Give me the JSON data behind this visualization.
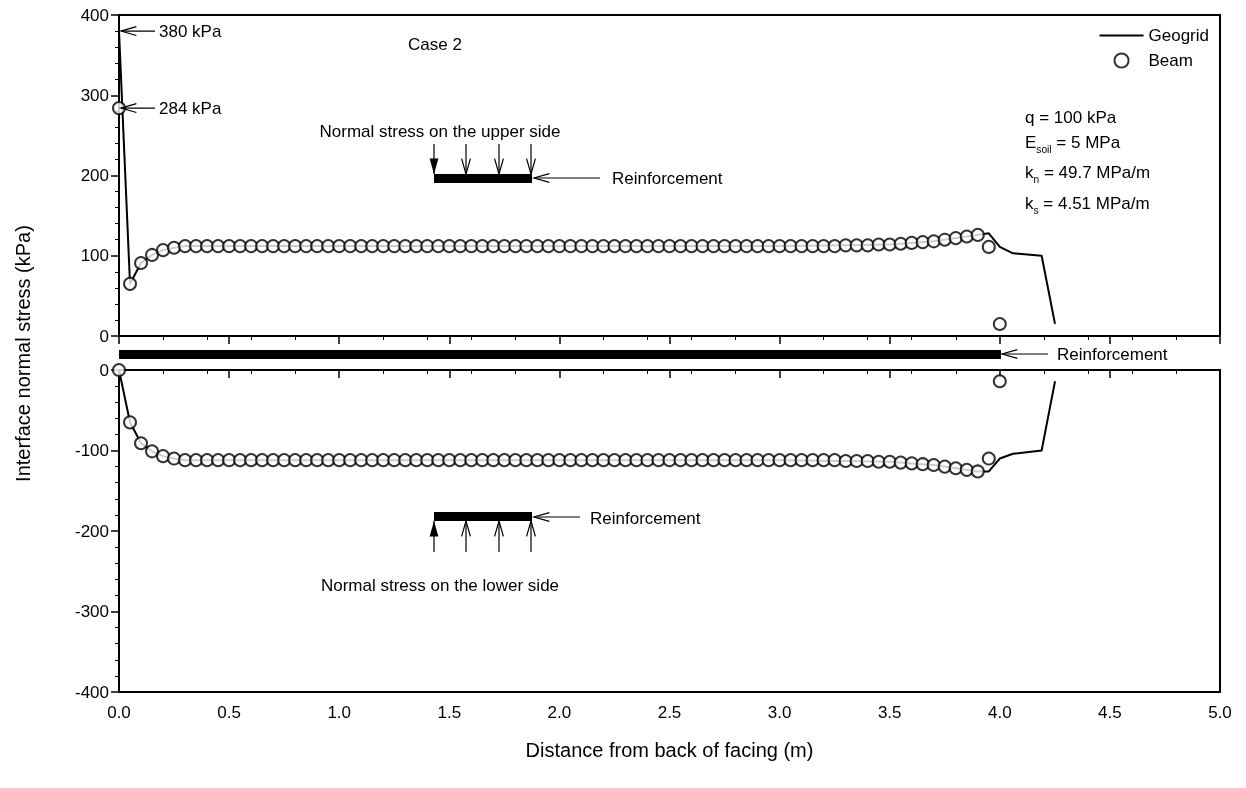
{
  "chart_data": [
    {
      "type": "line",
      "ylabel": "Interface normal stress (kPa)",
      "legend": "top right",
      "tick_labels": "y",
      "xlim": [
        0,
        5
      ],
      "xticks": [
        0,
        0.5,
        1,
        1.5,
        2,
        2.5,
        3,
        3.5,
        4,
        4.5,
        5
      ],
      "ylim": [
        0,
        400
      ],
      "yticks": [
        0,
        100,
        200,
        300,
        400
      ],
      "series": [
        {
          "name": "Geogrid",
          "marker": "none",
          "color": "#000000",
          "x": [
            0,
            0.05,
            0.1,
            0.15,
            0.2,
            0.25,
            0.3,
            1,
            2,
            3,
            3.3,
            3.5,
            3.6,
            3.7,
            3.8,
            3.9,
            3.95,
            4,
            4.06,
            4.19,
            4.25
          ],
          "values": [
            380,
            65,
            91,
            101,
            107,
            110,
            112,
            112,
            112,
            112,
            113,
            114,
            116,
            118,
            122,
            126,
            128,
            111,
            103,
            100,
            16
          ]
        },
        {
          "name": "Beam",
          "type": "scatter",
          "marker": "circle",
          "color": "#000000",
          "x": [
            0,
            0.05,
            0.1,
            0.15,
            0.2,
            0.25,
            0.3,
            0.35,
            0.4,
            0.45,
            0.5,
            0.55,
            0.6,
            0.65,
            0.7,
            0.75,
            0.8,
            0.85,
            0.9,
            0.95,
            1,
            1.05,
            1.1,
            1.15,
            1.2,
            1.25,
            1.3,
            1.35,
            1.4,
            1.45,
            1.5,
            1.55,
            1.6,
            1.65,
            1.7,
            1.75,
            1.8,
            1.85,
            1.9,
            1.95,
            2,
            2.05,
            2.1,
            2.15,
            2.2,
            2.25,
            2.3,
            2.35,
            2.4,
            2.45,
            2.5,
            2.55,
            2.6,
            2.65,
            2.7,
            2.75,
            2.8,
            2.85,
            2.9,
            2.95,
            3,
            3.05,
            3.1,
            3.15,
            3.2,
            3.25,
            3.3,
            3.35,
            3.4,
            3.45,
            3.5,
            3.55,
            3.6,
            3.65,
            3.7,
            3.75,
            3.8,
            3.85,
            3.9,
            3.95,
            4
          ],
          "values": [
            284,
            65,
            91,
            101,
            107,
            110,
            112,
            112,
            112,
            112,
            112,
            112,
            112,
            112,
            112,
            112,
            112,
            112,
            112,
            112,
            112,
            112,
            112,
            112,
            112,
            112,
            112,
            112,
            112,
            112,
            112,
            112,
            112,
            112,
            112,
            112,
            112,
            112,
            112,
            112,
            112,
            112,
            112,
            112,
            112,
            112,
            112,
            112,
            112,
            112,
            112,
            112,
            112,
            112,
            112,
            112,
            112,
            112,
            112,
            112,
            112,
            112,
            112,
            112,
            112,
            112,
            113,
            113,
            113,
            114,
            114,
            115,
            116,
            117,
            118,
            120,
            122,
            124,
            126,
            111,
            15
          ]
        }
      ],
      "annotations": [
        {
          "text": "380 kPa",
          "x": 0,
          "y": 380
        },
        {
          "text": "284 kPa",
          "x": 0,
          "y": 284
        },
        "Case 2",
        "q = 100 kPa",
        "E$_{soil}$ = 5 MPa",
        "k$_{n}$ = 49.7 MPa/m",
        "k$_{s}$ = 4.51 MPa/m",
        "Normal stress on the upper side",
        "Reinforcement",
        "Reinforcement"
      ]
    },
    {
      "type": "line",
      "xlabel": "Distance from back of facing (m)",
      "xlim": [
        0,
        5
      ],
      "xticks": [
        {
          "value": 0,
          "label": "0.0"
        },
        {
          "value": 0.5,
          "label": "0.5"
        },
        {
          "value": 1,
          "label": "1.0"
        },
        {
          "value": 1.5,
          "label": "1.5"
        },
        {
          "value": 2,
          "label": "2.0"
        },
        {
          "value": 2.5,
          "label": "2.5"
        },
        {
          "value": 3,
          "label": "3.0"
        },
        {
          "value": 3.5,
          "label": "3.5"
        },
        {
          "value": 4,
          "label": "4.0"
        },
        {
          "value": 4.5,
          "label": "4.5"
        },
        {
          "value": 5,
          "label": "5.0"
        }
      ],
      "ylim": [
        -400,
        0
      ],
      "yticks": [
        -400,
        -300,
        -200,
        -100,
        0
      ],
      "series": [
        {
          "marker": "none",
          "color": "#000000",
          "x": [
            0,
            0.05,
            0.1,
            0.15,
            0.2,
            0.25,
            0.3,
            1,
            2,
            3,
            3.3,
            3.5,
            3.6,
            3.7,
            3.8,
            3.9,
            3.95,
            4,
            4.06,
            4.19,
            4.25
          ],
          "values": [
            0,
            -65,
            -91,
            -101,
            -107,
            -110,
            -112,
            -112,
            -112,
            -112,
            -113,
            -114,
            -116,
            -118,
            -122,
            -126,
            -126,
            -110,
            -104,
            -100,
            -15
          ]
        },
        {
          "type": "scatter",
          "marker": "circle",
          "color": "#000000",
          "x": [
            0,
            0.05,
            0.1,
            0.15,
            0.2,
            0.25,
            0.3,
            0.35,
            0.4,
            0.45,
            0.5,
            0.55,
            0.6,
            0.65,
            0.7,
            0.75,
            0.8,
            0.85,
            0.9,
            0.95,
            1,
            1.05,
            1.1,
            1.15,
            1.2,
            1.25,
            1.3,
            1.35,
            1.4,
            1.45,
            1.5,
            1.55,
            1.6,
            1.65,
            1.7,
            1.75,
            1.8,
            1.85,
            1.9,
            1.95,
            2,
            2.05,
            2.1,
            2.15,
            2.2,
            2.25,
            2.3,
            2.35,
            2.4,
            2.45,
            2.5,
            2.55,
            2.6,
            2.65,
            2.7,
            2.75,
            2.8,
            2.85,
            2.9,
            2.95,
            3,
            3.05,
            3.1,
            3.15,
            3.2,
            3.25,
            3.3,
            3.35,
            3.4,
            3.45,
            3.5,
            3.55,
            3.6,
            3.65,
            3.7,
            3.75,
            3.8,
            3.85,
            3.9,
            3.95,
            4
          ],
          "values": [
            0,
            -65,
            -91,
            -101,
            -107,
            -110,
            -112,
            -112,
            -112,
            -112,
            -112,
            -112,
            -112,
            -112,
            -112,
            -112,
            -112,
            -112,
            -112,
            -112,
            -112,
            -112,
            -112,
            -112,
            -112,
            -112,
            -112,
            -112,
            -112,
            -112,
            -112,
            -112,
            -112,
            -112,
            -112,
            -112,
            -112,
            -112,
            -112,
            -112,
            -112,
            -112,
            -112,
            -112,
            -112,
            -112,
            -112,
            -112,
            -112,
            -112,
            -112,
            -112,
            -112,
            -112,
            -112,
            -112,
            -112,
            -112,
            -112,
            -112,
            -112,
            -112,
            -112,
            -112,
            -112,
            -112,
            -113,
            -113,
            -113,
            -114,
            -114,
            -115,
            -116,
            -117,
            -118,
            -120,
            -122,
            -124,
            -126,
            -110,
            -14
          ]
        }
      ],
      "annotations": [
        "Reinforcement",
        "Normal stress on the lower side"
      ]
    }
  ]
}
